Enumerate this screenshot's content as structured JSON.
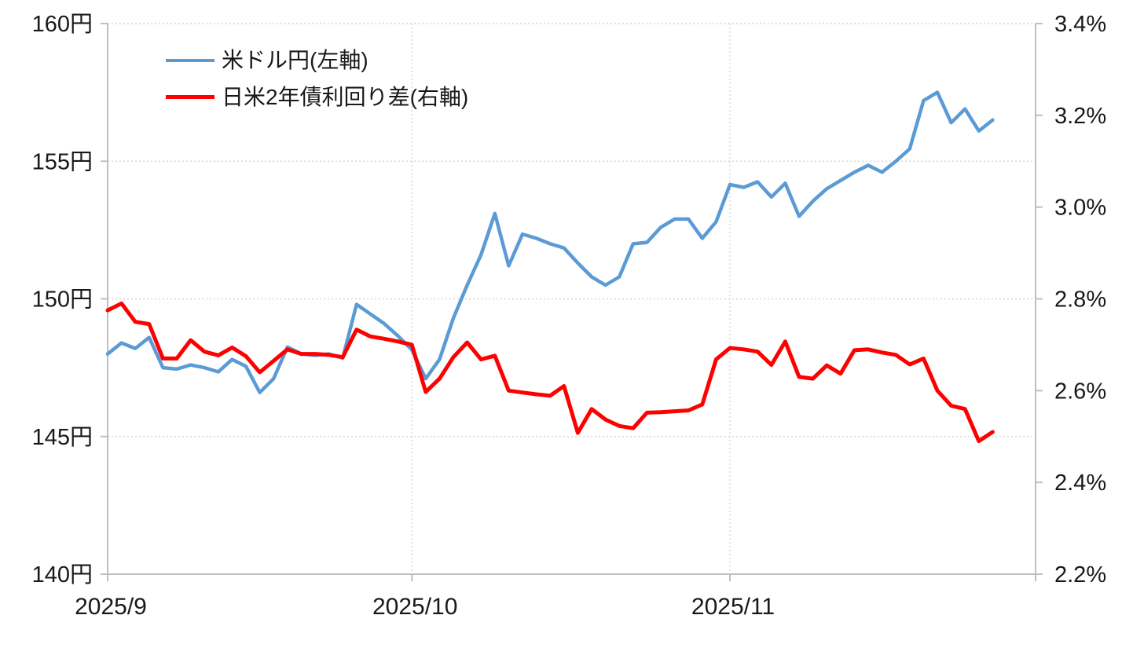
{
  "chart_data": {
    "type": "line",
    "title": "",
    "legend_position": "top-left-inside",
    "grid": "dotted",
    "points": 65,
    "x_axis": {
      "labels": [
        "2025/9",
        "2025/10",
        "2025/11"
      ],
      "label_indices": [
        0,
        22,
        45
      ]
    },
    "left_axis": {
      "min": 140,
      "max": 160,
      "step": 5,
      "tick_labels": [
        "140円",
        "145円",
        "150円",
        "155円",
        "160円"
      ],
      "tick_values": [
        140,
        145,
        150,
        155,
        160
      ]
    },
    "right_axis": {
      "min": 2.2,
      "max": 3.4,
      "step": 0.2,
      "tick_labels": [
        "2.2%",
        "2.4%",
        "2.6%",
        "2.8%",
        "3.0%",
        "3.2%",
        "3.4%"
      ],
      "tick_values": [
        2.2,
        2.4,
        2.6,
        2.8,
        3.0,
        3.2,
        3.4
      ]
    },
    "series": [
      {
        "name": "米ドル円(左軸)",
        "axis": "left",
        "color": "#5B9BD5",
        "width": 4.5,
        "values": [
          148.0,
          148.4,
          148.2,
          148.6,
          147.5,
          147.45,
          147.6,
          147.5,
          147.35,
          147.8,
          147.55,
          146.6,
          147.1,
          148.25,
          148.0,
          147.95,
          148.0,
          147.85,
          149.8,
          149.45,
          149.1,
          148.65,
          148.15,
          147.1,
          147.8,
          149.3,
          150.5,
          151.6,
          153.1,
          151.2,
          152.35,
          152.2,
          152.0,
          151.85,
          151.3,
          150.8,
          150.5,
          150.8,
          152.0,
          152.05,
          152.6,
          152.9,
          152.9,
          152.2,
          152.8,
          154.15,
          154.05,
          154.25,
          153.7,
          154.2,
          153.0,
          153.55,
          154.0,
          154.3,
          154.6,
          154.85,
          154.6,
          155.0,
          155.45,
          157.2,
          157.5,
          156.4,
          156.9,
          156.1,
          156.5
        ]
      },
      {
        "name": "日米2年債利回り差(右軸)",
        "axis": "right",
        "color": "#FF0000",
        "width": 5,
        "values": [
          2.775,
          2.79,
          2.75,
          2.745,
          2.67,
          2.67,
          2.71,
          2.685,
          2.677,
          2.694,
          2.675,
          2.64,
          2.665,
          2.69,
          2.68,
          2.68,
          2.678,
          2.673,
          2.733,
          2.718,
          2.713,
          2.707,
          2.7,
          2.597,
          2.626,
          2.673,
          2.705,
          2.668,
          2.676,
          2.6,
          2.596,
          2.592,
          2.589,
          2.61,
          2.508,
          2.56,
          2.537,
          2.523,
          2.518,
          2.552,
          2.553,
          2.555,
          2.557,
          2.57,
          2.668,
          2.693,
          2.69,
          2.685,
          2.656,
          2.707,
          2.63,
          2.626,
          2.655,
          2.637,
          2.688,
          2.69,
          2.683,
          2.678,
          2.657,
          2.67,
          2.6,
          2.567,
          2.56,
          2.49,
          2.51
        ]
      }
    ],
    "colors": {
      "axis_line": "#BFBFBF",
      "gridline": "#D6D6D6",
      "label_text": "#191919"
    }
  }
}
